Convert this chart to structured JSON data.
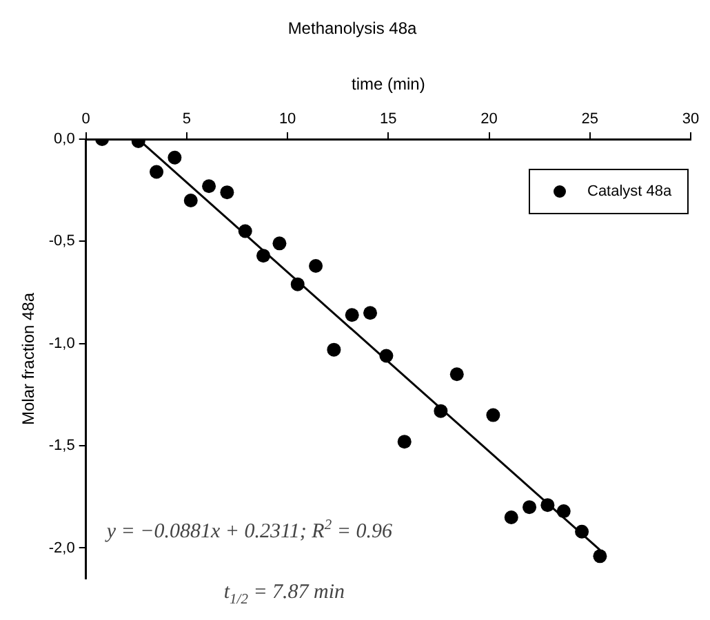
{
  "chart_data": {
    "type": "scatter",
    "title": "Methanolysis 48a",
    "xlabel": "time (min)",
    "ylabel": "Molar fraction 48a",
    "xlim": [
      0,
      30
    ],
    "xticks": [
      0,
      5,
      10,
      15,
      20,
      25,
      30
    ],
    "ylim": [
      -2.15,
      0
    ],
    "yticks": [
      {
        "value": 0,
        "label": "0,0"
      },
      {
        "value": -0.5,
        "label": "-0,5"
      },
      {
        "value": -1,
        "label": "-1,0"
      },
      {
        "value": -1.5,
        "label": "-1,5"
      },
      {
        "value": -2,
        "label": "-2,0"
      }
    ],
    "grid": false,
    "legend": "top right",
    "marker": "circle",
    "annotations": [
      "y = −0.0881x + 0.2311; R$^{2}$ = 0.96",
      "t$_{1/2}$ = 7.87 min"
    ],
    "series": [
      {
        "name": "Catalyst 48a",
        "type": "scatter",
        "color": "#000000",
        "x": [
          0.8,
          2.6,
          3.5,
          4.4,
          5.2,
          6.1,
          7.0,
          7.9,
          8.8,
          9.6,
          10.5,
          11.4,
          12.3,
          13.2,
          14.1,
          14.9,
          15.8,
          17.6,
          18.4,
          20.2,
          21.1,
          22.0,
          22.9,
          23.7,
          24.6,
          25.5
        ],
        "values": [
          0.0,
          -0.01,
          -0.16,
          -0.09,
          -0.3,
          -0.23,
          -0.26,
          -0.45,
          -0.57,
          -0.51,
          -0.71,
          -0.62,
          -1.03,
          -0.86,
          -0.85,
          -1.06,
          -1.48,
          -1.33,
          -1.15,
          -1.35,
          -1.85,
          -1.8,
          -1.79,
          -1.82,
          -1.92,
          -2.04
        ]
      },
      {
        "type": "line",
        "color": "#000000",
        "x": [
          2.7,
          25.5
        ],
        "values": [
          -0.01,
          -2.01
        ],
        "marker": "none",
        "line_style": "solid"
      }
    ]
  }
}
